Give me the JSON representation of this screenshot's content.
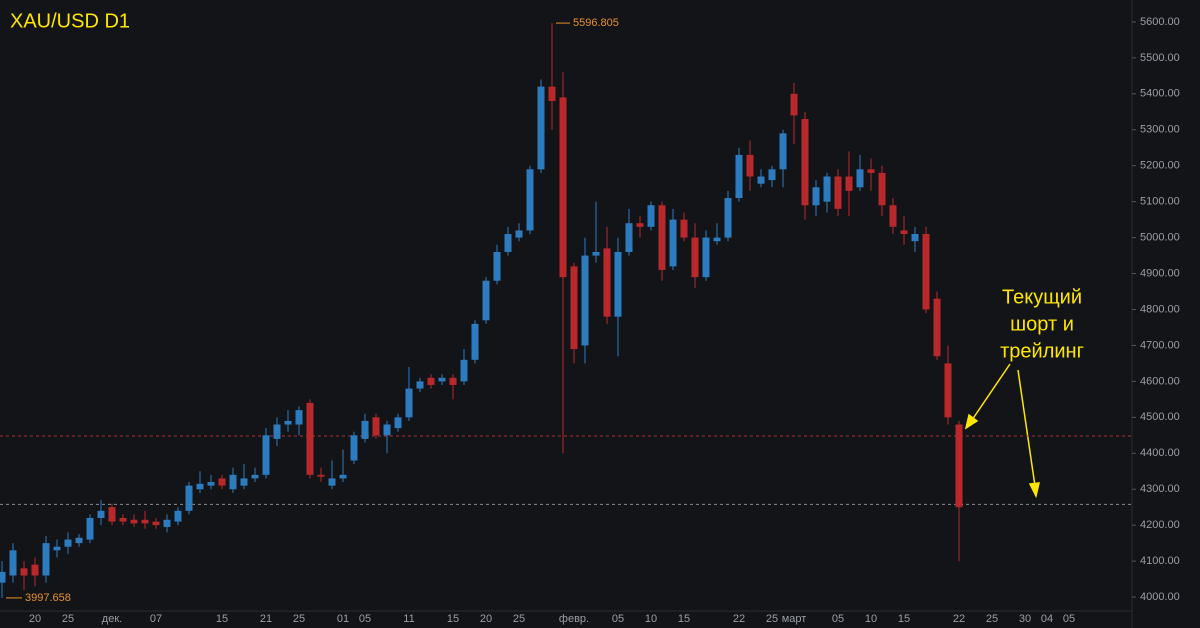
{
  "chart_data": {
    "type": "candlestick",
    "title": "XAU/USD D1",
    "annotation": [
      "Текущий",
      "шорт и",
      "трейлинг"
    ],
    "up_color": "#2e7cc0",
    "down_color": "#b9282b",
    "categories": [
      null,
      null,
      null,
      "20",
      null,
      null,
      "25",
      null,
      null,
      null,
      "дек.",
      null,
      null,
      null,
      "07",
      null,
      null,
      null,
      null,
      null,
      "15",
      null,
      null,
      null,
      "21",
      null,
      null,
      "25",
      null,
      null,
      null,
      "01",
      null,
      "05",
      null,
      null,
      null,
      "11",
      null,
      null,
      null,
      "15",
      null,
      null,
      "20",
      null,
      null,
      "25",
      null,
      null,
      null,
      null,
      "февр.",
      null,
      null,
      null,
      "05",
      null,
      null,
      "10",
      null,
      null,
      "15",
      null,
      null,
      null,
      null,
      "22",
      null,
      null,
      "25",
      null,
      "март",
      null,
      null,
      null,
      "05",
      null,
      null,
      "10",
      null,
      null,
      "15",
      null,
      null,
      null,
      null,
      "22",
      null,
      null,
      "25",
      null,
      null,
      "30",
      null,
      "04",
      null,
      "05"
    ],
    "open": [
      4040,
      4060,
      4080,
      4090,
      4060,
      4130,
      4140,
      4150,
      4160,
      4220,
      4250,
      4220,
      4215,
      4215,
      4210,
      4195,
      4210,
      4240,
      4300,
      4310,
      4330,
      4300,
      4310,
      4330,
      4340,
      4440,
      4480,
      4480,
      4540,
      4340,
      4310,
      4330,
      4380,
      4440,
      4500,
      4450,
      4470,
      4500,
      4580,
      4610,
      4600,
      4610,
      4600,
      4660,
      4770,
      4880,
      4960,
      5000,
      5020,
      5190,
      5420,
      5390,
      4920,
      4700,
      4950,
      4970,
      4780,
      4960,
      5040,
      5030,
      5090,
      4920,
      5050,
      5000,
      4890,
      4990,
      5000,
      5110,
      5230,
      5150,
      5160,
      5190,
      5400,
      5330,
      5090,
      5100,
      5170,
      5170,
      5140,
      5190,
      5180,
      5090,
      5020,
      4990,
      5010,
      4830,
      4650,
      4480,
      null,
      null,
      null,
      null,
      null,
      null,
      null,
      null,
      null,
      null
    ],
    "high": [
      4100,
      4150,
      4100,
      4110,
      4170,
      4160,
      4180,
      4175,
      4230,
      4270,
      4260,
      4230,
      4230,
      4240,
      4220,
      4230,
      4250,
      4320,
      4350,
      4340,
      4340,
      4360,
      4370,
      4360,
      4470,
      4500,
      4520,
      4530,
      4550,
      4360,
      4380,
      4410,
      4460,
      4510,
      4510,
      4490,
      4510,
      4640,
      4610,
      4620,
      4620,
      4620,
      4690,
      4770,
      4890,
      4980,
      5030,
      5040,
      5200,
      5440,
      5596.805,
      5460,
      4930,
      5000,
      5100,
      5030,
      5000,
      5080,
      5060,
      5100,
      5100,
      5080,
      5070,
      5040,
      5020,
      5040,
      5130,
      5250,
      5270,
      5190,
      5200,
      5300,
      5430,
      5350,
      5160,
      5180,
      5190,
      5240,
      5230,
      5220,
      5200,
      5110,
      5060,
      5030,
      5030,
      4850,
      4700,
      4490,
      null,
      null,
      null,
      null,
      null,
      null,
      null,
      null,
      null,
      null
    ],
    "low": [
      3997.658,
      4040,
      4020,
      4030,
      4040,
      4110,
      4120,
      4140,
      4150,
      4200,
      4200,
      4200,
      4195,
      4190,
      4190,
      4180,
      4200,
      4230,
      4290,
      4300,
      4300,
      4290,
      4300,
      4320,
      4330,
      4420,
      4460,
      4450,
      4330,
      4320,
      4300,
      4320,
      4370,
      4430,
      4440,
      4400,
      4460,
      4490,
      4570,
      4580,
      4590,
      4550,
      4590,
      4650,
      4760,
      4870,
      4950,
      4990,
      5010,
      5180,
      5300,
      4400,
      4650,
      4650,
      4930,
      4760,
      4670,
      4950,
      5000,
      5020,
      4880,
      4910,
      4990,
      4860,
      4880,
      4980,
      4990,
      5100,
      5130,
      5140,
      5140,
      5140,
      5260,
      5050,
      5060,
      5070,
      5060,
      5060,
      5130,
      5130,
      5060,
      5010,
      4980,
      4960,
      4790,
      4660,
      4480,
      4100,
      null,
      null,
      null,
      null,
      null,
      null,
      null,
      null,
      null,
      null
    ],
    "close": [
      4070,
      4130,
      4060,
      4060,
      4150,
      4140,
      4160,
      4165,
      4220,
      4240,
      4210,
      4210,
      4205,
      4205,
      4200,
      4215,
      4240,
      4310,
      4315,
      4320,
      4310,
      4340,
      4330,
      4340,
      4450,
      4480,
      4490,
      4520,
      4340,
      4335,
      4330,
      4340,
      4450,
      4490,
      4450,
      4480,
      4500,
      4580,
      4600,
      4590,
      4610,
      4590,
      4660,
      4760,
      4880,
      4960,
      5010,
      5020,
      5190,
      5420,
      5380,
      4890,
      4690,
      4950,
      4960,
      4780,
      4960,
      5040,
      5030,
      5090,
      4910,
      5050,
      5000,
      4890,
      5000,
      5000,
      5110,
      5230,
      5170,
      5170,
      5190,
      5290,
      5340,
      5090,
      5140,
      5170,
      5080,
      5130,
      5190,
      5180,
      5090,
      5030,
      5010,
      5010,
      4800,
      4670,
      4500,
      4250,
      null,
      null,
      null,
      null,
      null,
      null,
      null,
      null,
      null,
      null
    ],
    "hlines": [
      {
        "value": 4448,
        "color": "#a83636"
      },
      {
        "value": 4258,
        "color": "#8a8d94"
      }
    ],
    "ylim": [
      3964,
      5661
    ],
    "yticks": [
      {
        "value": 4000,
        "label": "4000.00"
      },
      {
        "value": 4100,
        "label": "4100.00"
      },
      {
        "value": 4200,
        "label": "4200.00"
      },
      {
        "value": 4300,
        "label": "4300.00"
      },
      {
        "value": 4400,
        "label": "4400.00"
      },
      {
        "value": 4500,
        "label": "4500.00"
      },
      {
        "value": 4600,
        "label": "4600.00"
      },
      {
        "value": 4700,
        "label": "4700.00"
      },
      {
        "value": 4800,
        "label": "4800.00"
      },
      {
        "value": 4900,
        "label": "4900.00"
      },
      {
        "value": 5000,
        "label": "5000.00"
      },
      {
        "value": 5100,
        "label": "5100.00"
      },
      {
        "value": 5200,
        "label": "5200.00"
      },
      {
        "value": 5300,
        "label": "5300.00"
      },
      {
        "value": 5400,
        "label": "5400.00"
      },
      {
        "value": 5500,
        "label": "5500.00"
      },
      {
        "value": 5600,
        "label": "5600.00"
      }
    ]
  }
}
